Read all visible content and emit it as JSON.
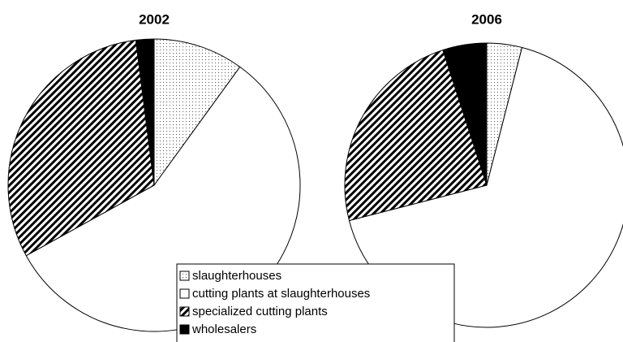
{
  "chart_data": [
    {
      "type": "pie",
      "title": "2002",
      "categories": [
        "slaughterhouses",
        "cutting plants at slaughterhouses",
        "specialized cutting plants",
        "wholesalers"
      ],
      "values": [
        10,
        57,
        31,
        2
      ],
      "fills": [
        "dotted",
        "#ffffff",
        "hatched",
        "#000000"
      ]
    },
    {
      "type": "pie",
      "title": "2006",
      "categories": [
        "slaughterhouses",
        "cutting plants at slaughterhouses",
        "specialized cutting plants",
        "wholesalers"
      ],
      "values": [
        4,
        67,
        24,
        5
      ],
      "fills": [
        "dotted",
        "#ffffff",
        "hatched",
        "#000000"
      ]
    }
  ]
}
